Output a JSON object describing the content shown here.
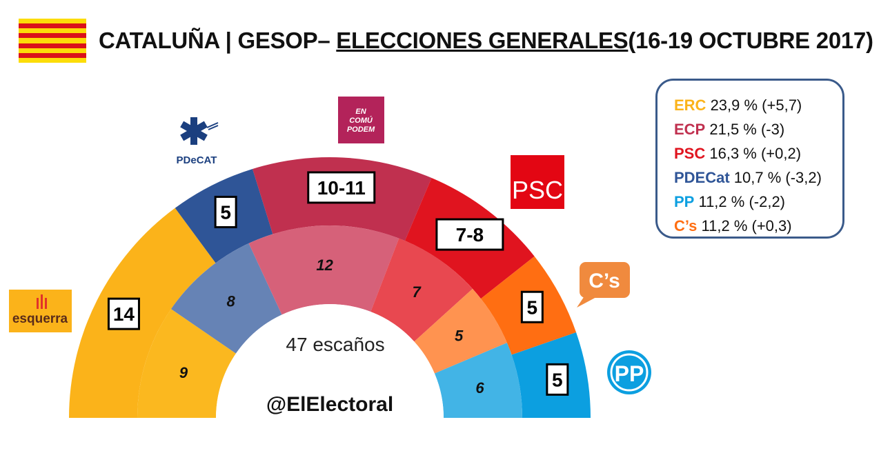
{
  "header": {
    "region": "CATALUÑA",
    "separator": "|",
    "pollster": "GESOP–",
    "election": "ELECCIONES GENERALES",
    "dates": "(16-19 OCTUBRE 2017)"
  },
  "colors": {
    "flag_yellow": "#FCDD09",
    "flag_red": "#DA121A",
    "legend_border": "#3a5a8a"
  },
  "chart_data": {
    "type": "semicircle-parliament",
    "total_label": "47 escaños",
    "watermark": "@ElElectoral",
    "outer_ring": [
      {
        "party": "ERC",
        "seats_label": "14",
        "seats": 14,
        "color": "#FBB31A"
      },
      {
        "party": "PDECat",
        "seats_label": "5",
        "seats": 5,
        "color": "#2F5597"
      },
      {
        "party": "ECP",
        "seats_label": "10-11",
        "seats": 10.5,
        "color": "#C0304F"
      },
      {
        "party": "PSC",
        "seats_label": "7-8",
        "seats": 7.5,
        "color": "#E0141F"
      },
      {
        "party": "C's",
        "seats_label": "5",
        "seats": 5,
        "color": "#FF6E12"
      },
      {
        "party": "PP",
        "seats_label": "5",
        "seats": 5,
        "color": "#0C9FE0"
      }
    ],
    "inner_ring": [
      {
        "party": "ERC",
        "seats_label": "9",
        "seats": 9,
        "color": "#FBB81F"
      },
      {
        "party": "PDECat",
        "seats_label": "8",
        "seats": 8,
        "color": "#6683B5"
      },
      {
        "party": "ECP",
        "seats_label": "12",
        "seats": 12,
        "color": "#D66179"
      },
      {
        "party": "PSC",
        "seats_label": "7",
        "seats": 7,
        "color": "#E84850"
      },
      {
        "party": "C's",
        "seats_label": "5",
        "seats": 5,
        "color": "#FF9350"
      },
      {
        "party": "PP",
        "seats_label": "6",
        "seats": 6,
        "color": "#42B4E6"
      }
    ],
    "logos": [
      {
        "party": "ERC",
        "icon": "erc-logo",
        "text": "esquerra"
      },
      {
        "party": "PDECat",
        "icon": "pdecat-logo",
        "text": "PDeCAT"
      },
      {
        "party": "ECP",
        "icon": "ecp-logo",
        "text": "EN COMÚ PODEM"
      },
      {
        "party": "PSC",
        "icon": "psc-logo",
        "text": "PSC"
      },
      {
        "party": "C's",
        "icon": "cs-logo",
        "text": "C’s"
      },
      {
        "party": "PP",
        "icon": "pp-logo",
        "text": "PP"
      }
    ]
  },
  "legend": [
    {
      "party": "ERC",
      "text": "23,9 % (+5,7)",
      "color": "#FBB31A"
    },
    {
      "party": "ECP",
      "text": "21,5 % (-3)",
      "color": "#C0304F"
    },
    {
      "party": "PSC",
      "text": "16,3 % (+0,2)",
      "color": "#E0141F"
    },
    {
      "party": "PDECat",
      "text": "10,7 % (-3,2)",
      "color": "#2F5597"
    },
    {
      "party": "PP",
      "text": "11,2 % (-2,2)",
      "color": "#0C9FE0"
    },
    {
      "party": "C’s",
      "text": "11,2 % (+0,3)",
      "color": "#FF6E12"
    }
  ]
}
